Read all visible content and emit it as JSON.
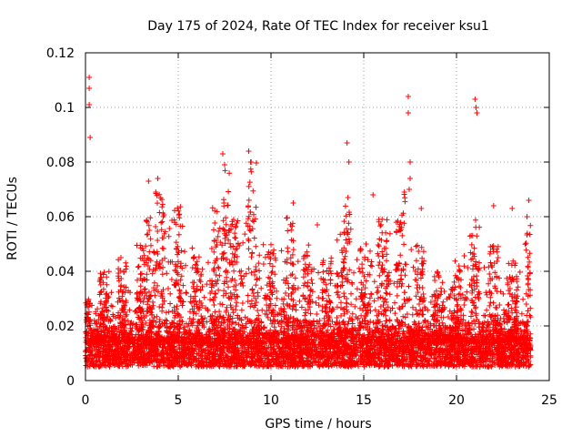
{
  "chart_data": {
    "type": "scatter",
    "title": "Day 175 of 2024, Rate Of TEC Index for receiver ksu1",
    "xlabel": "GPS time / hours",
    "ylabel": "ROTI / TECUs",
    "xlim": [
      0,
      25
    ],
    "ylim": [
      0,
      0.12
    ],
    "xticks": [
      0,
      5,
      10,
      15,
      20,
      25
    ],
    "xtick_labels": [
      "0",
      "5",
      "10",
      "15",
      "20",
      "25"
    ],
    "yticks": [
      0,
      0.02,
      0.04,
      0.06,
      0.08,
      0.1,
      0.12
    ],
    "ytick_labels": [
      "0",
      "0.02",
      "0.04",
      "0.06",
      "0.08",
      "0.1",
      "0.12"
    ],
    "grid": true,
    "marker": "+",
    "color": "#ff0000",
    "x_data_range": [
      0,
      24
    ],
    "typical_band": [
      0.005,
      0.02
    ],
    "envelope": [
      [
        0,
        0.03
      ],
      [
        1,
        0.04
      ],
      [
        2,
        0.045
      ],
      [
        3,
        0.05
      ],
      [
        3.5,
        0.06
      ],
      [
        4,
        0.07
      ],
      [
        5,
        0.065
      ],
      [
        6,
        0.05
      ],
      [
        7,
        0.065
      ],
      [
        7.5,
        0.08
      ],
      [
        8,
        0.06
      ],
      [
        9,
        0.08
      ],
      [
        10,
        0.05
      ],
      [
        11,
        0.06
      ],
      [
        12,
        0.05
      ],
      [
        13,
        0.045
      ],
      [
        14,
        0.065
      ],
      [
        15,
        0.05
      ],
      [
        16,
        0.06
      ],
      [
        17,
        0.07
      ],
      [
        18,
        0.05
      ],
      [
        19,
        0.04
      ],
      [
        20,
        0.045
      ],
      [
        21,
        0.06
      ],
      [
        22,
        0.05
      ],
      [
        23,
        0.045
      ],
      [
        24,
        0.06
      ]
    ],
    "spikes": [
      {
        "x": 0.2,
        "y": 0.111
      },
      {
        "x": 0.2,
        "y": 0.107
      },
      {
        "x": 0.2,
        "y": 0.101
      },
      {
        "x": 0.25,
        "y": 0.089
      },
      {
        "x": 3.4,
        "y": 0.073
      },
      {
        "x": 3.9,
        "y": 0.074
      },
      {
        "x": 7.4,
        "y": 0.083
      },
      {
        "x": 7.5,
        "y": 0.079
      },
      {
        "x": 8.8,
        "y": 0.084
      },
      {
        "x": 8.9,
        "y": 0.08
      },
      {
        "x": 11.2,
        "y": 0.065
      },
      {
        "x": 12.5,
        "y": 0.057
      },
      {
        "x": 14.1,
        "y": 0.087
      },
      {
        "x": 14.2,
        "y": 0.08
      },
      {
        "x": 14.15,
        "y": 0.067
      },
      {
        "x": 15.5,
        "y": 0.068
      },
      {
        "x": 17.4,
        "y": 0.104
      },
      {
        "x": 17.4,
        "y": 0.098
      },
      {
        "x": 17.5,
        "y": 0.08
      },
      {
        "x": 17.5,
        "y": 0.074
      },
      {
        "x": 17.45,
        "y": 0.07
      },
      {
        "x": 18.1,
        "y": 0.063
      },
      {
        "x": 21.0,
        "y": 0.103
      },
      {
        "x": 21.05,
        "y": 0.1
      },
      {
        "x": 21.1,
        "y": 0.098
      },
      {
        "x": 22.0,
        "y": 0.064
      },
      {
        "x": 23.0,
        "y": 0.063
      },
      {
        "x": 23.9,
        "y": 0.066
      },
      {
        "x": 23.8,
        "y": 0.06
      }
    ]
  }
}
